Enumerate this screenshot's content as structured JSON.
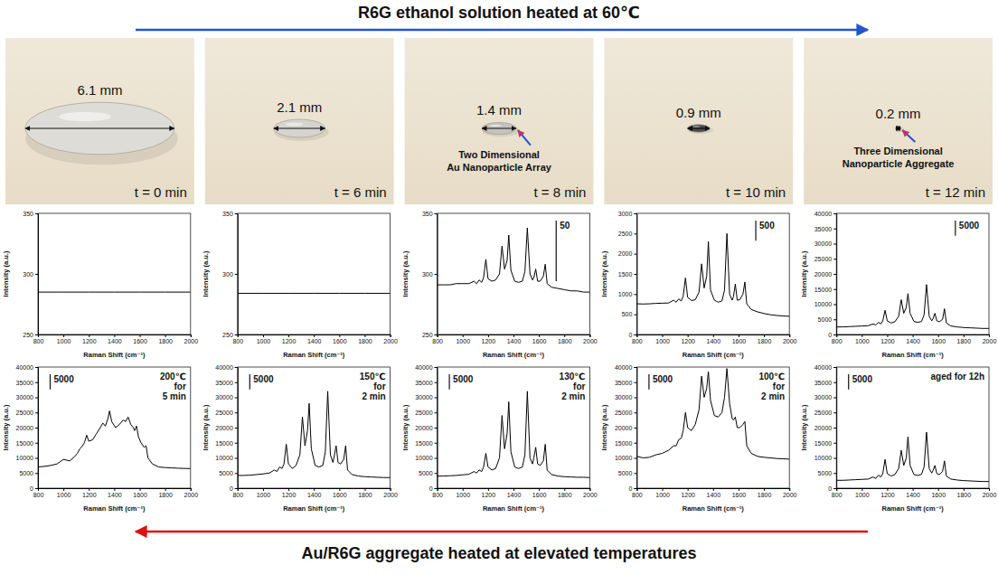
{
  "header": {
    "top": "R6G ethanol solution heated at 60℃",
    "bottom": "Au/R6G aggregate heated at elevated temperatures"
  },
  "photos": [
    {
      "diameter": 6.1,
      "diameter_label": "6.1 mm",
      "time_label": "t = 0 min",
      "color": "#dedcd6"
    },
    {
      "diameter": 2.1,
      "diameter_label": "2.1 mm",
      "time_label": "t = 6 min",
      "color": "#d6d4ce"
    },
    {
      "diameter": 1.4,
      "diameter_label": "1.4 mm",
      "time_label": "t = 8 min",
      "color": "#c4c2bc",
      "note": [
        "Two Dimensional",
        "Au Nanoparticle Array"
      ]
    },
    {
      "diameter": 0.9,
      "diameter_label": "0.9 mm",
      "time_label": "t = 10 min",
      "color": "#4a4a4a"
    },
    {
      "diameter": 0.2,
      "diameter_label": "0.2 mm",
      "time_label": "t = 12 min",
      "color": "#7a6238",
      "note": [
        "Three Dimensional",
        "Nanoparticle Aggregate"
      ]
    }
  ],
  "chart_data": [
    {
      "type": "line",
      "x": [
        800,
        1000,
        1200,
        1400,
        1600,
        1800,
        2000
      ],
      "series": [
        {
          "color": "#000000",
          "values": [
            285,
            285,
            285,
            285,
            285,
            285,
            285
          ]
        }
      ],
      "xlim": [
        800,
        2000
      ],
      "xticks": [
        800,
        1000,
        1200,
        1400,
        1600,
        1800,
        2000
      ],
      "ylim": [
        250,
        350
      ],
      "yticks": [
        250,
        300,
        350
      ],
      "x_label": "Raman Shift (cm⁻¹)",
      "y_label": "Intensity (a.u.)"
    },
    {
      "type": "line",
      "x": [
        800,
        1000,
        1200,
        1400,
        1600,
        1800,
        2000
      ],
      "series": [
        {
          "color": "#000000",
          "values": [
            284,
            284,
            284,
            284,
            284,
            284,
            284
          ]
        }
      ],
      "xlim": [
        800,
        2000
      ],
      "xticks": [
        800,
        1000,
        1200,
        1400,
        1600,
        1800,
        2000
      ],
      "ylim": [
        250,
        350
      ],
      "yticks": [
        250,
        300,
        350
      ],
      "x_label": "Raman Shift (cm⁻¹)",
      "y_label": "Intensity (a.u.)"
    },
    {
      "type": "line",
      "x": [
        800,
        850,
        900,
        950,
        1000,
        1050,
        1090,
        1110,
        1130,
        1150,
        1165,
        1183,
        1200,
        1230,
        1260,
        1290,
        1310,
        1330,
        1350,
        1363,
        1380,
        1410,
        1440,
        1470,
        1490,
        1509,
        1530,
        1550,
        1560,
        1575,
        1590,
        1610,
        1635,
        1650,
        1665,
        1700,
        1750,
        1800,
        1850,
        1900,
        1950,
        2000
      ],
      "series": [
        {
          "color": "#000000",
          "values": [
            291,
            291,
            291,
            292,
            292,
            292,
            294,
            292,
            295,
            293,
            297,
            312,
            296,
            294,
            295,
            300,
            323,
            304,
            311,
            332,
            303,
            294,
            293,
            294,
            302,
            338,
            300,
            295,
            297,
            304,
            294,
            294,
            298,
            308,
            292,
            289,
            288,
            287,
            286,
            286,
            285,
            285
          ]
        }
      ],
      "xlim": [
        800,
        2000
      ],
      "xticks": [
        800,
        1000,
        1200,
        1400,
        1600,
        1800,
        2000
      ],
      "ylim": [
        250,
        350
      ],
      "yticks": [
        250,
        300,
        350
      ],
      "x_label": "Raman Shift (cm⁻¹)",
      "y_label": "Intensity (a.u.)",
      "scale_bar": 50
    },
    {
      "type": "line",
      "x": [
        800,
        850,
        900,
        950,
        1000,
        1050,
        1090,
        1110,
        1130,
        1150,
        1165,
        1183,
        1200,
        1230,
        1260,
        1290,
        1310,
        1330,
        1350,
        1363,
        1380,
        1410,
        1440,
        1470,
        1490,
        1509,
        1530,
        1550,
        1560,
        1575,
        1590,
        1610,
        1635,
        1650,
        1665,
        1700,
        1750,
        1800,
        1850,
        1900,
        1950,
        2000
      ],
      "series": [
        {
          "color": "#000000",
          "values": [
            760,
            755,
            760,
            770,
            775,
            780,
            850,
            800,
            880,
            830,
            950,
            1400,
            920,
            840,
            860,
            1050,
            1750,
            1150,
            1450,
            2300,
            1100,
            850,
            800,
            830,
            1100,
            2500,
            1000,
            850,
            930,
            1250,
            850,
            860,
            1000,
            1300,
            760,
            620,
            560,
            520,
            490,
            470,
            460,
            450
          ]
        }
      ],
      "xlim": [
        800,
        2000
      ],
      "xticks": [
        800,
        1000,
        1200,
        1400,
        1600,
        1800,
        2000
      ],
      "ylim": [
        0,
        3000
      ],
      "yticks": [
        0,
        500,
        1000,
        1500,
        2000,
        2500,
        3000
      ],
      "x_label": "Raman Shift (cm⁻¹)",
      "y_label": "Intensity (a.u.)",
      "scale_bar": 500
    },
    {
      "type": "line",
      "x": [
        800,
        850,
        900,
        950,
        1000,
        1050,
        1090,
        1110,
        1130,
        1150,
        1165,
        1183,
        1200,
        1230,
        1260,
        1290,
        1310,
        1330,
        1350,
        1363,
        1380,
        1410,
        1440,
        1470,
        1490,
        1509,
        1530,
        1550,
        1560,
        1575,
        1590,
        1610,
        1635,
        1650,
        1665,
        1700,
        1750,
        1800,
        1850,
        1900,
        1950,
        2000
      ],
      "series": [
        {
          "color": "#000000",
          "values": [
            2500,
            2500,
            2600,
            2700,
            2800,
            2900,
            3500,
            3100,
            4000,
            3500,
            4500,
            8000,
            4500,
            3800,
            4200,
            6000,
            11500,
            7000,
            9000,
            13500,
            7000,
            4300,
            4000,
            4300,
            6500,
            16500,
            6000,
            4500,
            5200,
            7000,
            4500,
            4200,
            5000,
            8500,
            3800,
            2800,
            2500,
            2300,
            2200,
            2100,
            2000,
            2000
          ]
        }
      ],
      "xlim": [
        800,
        2000
      ],
      "xticks": [
        800,
        1000,
        1200,
        1400,
        1600,
        1800,
        2000
      ],
      "ylim": [
        0,
        40000
      ],
      "yticks": [
        0,
        5000,
        10000,
        15000,
        20000,
        25000,
        30000,
        35000,
        40000
      ],
      "x_label": "Raman Shift (cm⁻¹)",
      "y_label": "Intensity (a.u.)",
      "scale_bar": 5000
    },
    {
      "type": "line",
      "x": [
        800,
        850,
        900,
        950,
        1000,
        1050,
        1090,
        1110,
        1130,
        1150,
        1165,
        1183,
        1200,
        1230,
        1260,
        1290,
        1310,
        1330,
        1350,
        1363,
        1380,
        1410,
        1440,
        1470,
        1490,
        1509,
        1530,
        1550,
        1560,
        1575,
        1590,
        1610,
        1635,
        1650,
        1665,
        1700,
        1750,
        1800,
        1850,
        1900,
        1950,
        2000
      ],
      "series": [
        {
          "color": "#000000",
          "values": [
            7000,
            7200,
            7500,
            8000,
            9500,
            9000,
            10500,
            11500,
            13000,
            14000,
            15000,
            17500,
            15500,
            16000,
            18000,
            20000,
            21500,
            20500,
            23000,
            25500,
            22000,
            20000,
            21000,
            22500,
            22000,
            23500,
            21000,
            20000,
            19000,
            20500,
            17000,
            15000,
            13500,
            14000,
            10000,
            8000,
            7000,
            6800,
            6700,
            6600,
            6500,
            6500
          ]
        }
      ],
      "xlim": [
        800,
        2000
      ],
      "xticks": [
        800,
        1000,
        1200,
        1400,
        1600,
        1800,
        2000
      ],
      "ylim": [
        0,
        40000
      ],
      "yticks": [
        0,
        5000,
        10000,
        15000,
        20000,
        25000,
        30000,
        35000,
        40000
      ],
      "x_label": "Raman Shift (cm⁻¹)",
      "y_label": "Intensity (a.u.)",
      "scale_bar": 5000,
      "annotation": [
        "200℃",
        "for",
        "5 min"
      ]
    },
    {
      "type": "line",
      "x": [
        800,
        850,
        900,
        950,
        1000,
        1050,
        1090,
        1110,
        1130,
        1150,
        1165,
        1183,
        1200,
        1230,
        1260,
        1290,
        1310,
        1330,
        1350,
        1363,
        1380,
        1410,
        1440,
        1470,
        1490,
        1509,
        1530,
        1550,
        1560,
        1575,
        1590,
        1610,
        1635,
        1650,
        1665,
        1700,
        1750,
        1800,
        1850,
        1900,
        1950,
        2000
      ],
      "series": [
        {
          "color": "#000000",
          "values": [
            4200,
            4200,
            4300,
            4500,
            4700,
            5000,
            6000,
            5500,
            7000,
            6500,
            8000,
            14500,
            8000,
            6500,
            7500,
            11000,
            23500,
            14000,
            19000,
            28000,
            13000,
            7500,
            7000,
            7500,
            12000,
            32000,
            11000,
            8500,
            10500,
            14000,
            8500,
            8000,
            9500,
            14000,
            6000,
            4500,
            4000,
            3800,
            3700,
            3600,
            3500,
            3500
          ]
        }
      ],
      "xlim": [
        800,
        2000
      ],
      "xticks": [
        800,
        1000,
        1200,
        1400,
        1600,
        1800,
        2000
      ],
      "ylim": [
        0,
        40000
      ],
      "yticks": [
        0,
        5000,
        10000,
        15000,
        20000,
        25000,
        30000,
        35000,
        40000
      ],
      "x_label": "Raman Shift (cm⁻¹)",
      "y_label": "Intensity (a.u.)",
      "scale_bar": 5000,
      "annotation": [
        "150℃",
        "for",
        "2 min"
      ]
    },
    {
      "type": "line",
      "x": [
        800,
        850,
        900,
        950,
        1000,
        1050,
        1090,
        1110,
        1130,
        1150,
        1165,
        1183,
        1200,
        1230,
        1260,
        1290,
        1310,
        1330,
        1350,
        1363,
        1380,
        1410,
        1440,
        1470,
        1490,
        1509,
        1530,
        1550,
        1560,
        1575,
        1590,
        1610,
        1635,
        1650,
        1665,
        1700,
        1750,
        1800,
        1850,
        1900,
        1950,
        2000
      ],
      "series": [
        {
          "color": "#000000",
          "values": [
            4000,
            4000,
            4100,
            4200,
            4400,
            4600,
            5500,
            5000,
            6000,
            5500,
            7000,
            11500,
            7000,
            6000,
            6500,
            10000,
            24000,
            13000,
            18000,
            28500,
            12000,
            7000,
            6500,
            7000,
            11000,
            32000,
            10000,
            8000,
            10000,
            13500,
            8000,
            7500,
            9000,
            14500,
            6000,
            4500,
            4000,
            3800,
            3700,
            3600,
            3600,
            3500
          ]
        }
      ],
      "xlim": [
        800,
        2000
      ],
      "xticks": [
        800,
        1000,
        1200,
        1400,
        1600,
        1800,
        2000
      ],
      "ylim": [
        0,
        40000
      ],
      "yticks": [
        0,
        5000,
        10000,
        15000,
        20000,
        25000,
        30000,
        35000,
        40000
      ],
      "x_label": "Raman Shift (cm⁻¹)",
      "y_label": "Intensity (a.u.)",
      "scale_bar": 5000,
      "annotation": [
        "130℃",
        "for",
        "2 min"
      ]
    },
    {
      "type": "line",
      "x": [
        800,
        850,
        900,
        950,
        1000,
        1050,
        1090,
        1110,
        1130,
        1150,
        1165,
        1183,
        1200,
        1230,
        1260,
        1290,
        1310,
        1330,
        1350,
        1363,
        1380,
        1410,
        1440,
        1470,
        1490,
        1509,
        1530,
        1550,
        1560,
        1575,
        1590,
        1610,
        1635,
        1650,
        1665,
        1700,
        1750,
        1800,
        1850,
        1900,
        1950,
        2000
      ],
      "series": [
        {
          "color": "#000000",
          "values": [
            10500,
            10000,
            10200,
            11000,
            11500,
            12500,
            14000,
            14000,
            16000,
            16500,
            19000,
            25000,
            20000,
            19000,
            21000,
            26000,
            37000,
            30000,
            33000,
            38500,
            29000,
            24000,
            23500,
            25000,
            30000,
            39500,
            28000,
            23000,
            22500,
            23500,
            20000,
            20000,
            21000,
            22000,
            14000,
            11500,
            10500,
            10200,
            10000,
            9800,
            9700,
            9600
          ]
        }
      ],
      "xlim": [
        800,
        2000
      ],
      "xticks": [
        800,
        1000,
        1200,
        1400,
        1600,
        1800,
        2000
      ],
      "ylim": [
        0,
        40000
      ],
      "yticks": [
        0,
        5000,
        10000,
        15000,
        20000,
        25000,
        30000,
        35000,
        40000
      ],
      "x_label": "Raman Shift (cm⁻¹)",
      "y_label": "Intensity (a.u.)",
      "scale_bar": 5000,
      "annotation": [
        "100℃",
        "for",
        "2 min"
      ]
    },
    {
      "type": "line",
      "x": [
        800,
        850,
        900,
        950,
        1000,
        1050,
        1090,
        1110,
        1130,
        1150,
        1165,
        1183,
        1200,
        1230,
        1260,
        1290,
        1310,
        1330,
        1350,
        1363,
        1380,
        1410,
        1440,
        1470,
        1490,
        1509,
        1530,
        1550,
        1560,
        1575,
        1590,
        1610,
        1635,
        1650,
        1665,
        1700,
        1750,
        1800,
        1850,
        1900,
        1950,
        2000
      ],
      "series": [
        {
          "color": "#000000",
          "values": [
            2600,
            2600,
            2700,
            2800,
            2900,
            3000,
            3700,
            3200,
            4300,
            3700,
            4800,
            9500,
            4800,
            4000,
            4500,
            6500,
            12500,
            7500,
            10000,
            17000,
            7500,
            4500,
            4200,
            4600,
            7000,
            18500,
            6500,
            5000,
            5800,
            7500,
            4800,
            4500,
            5500,
            9000,
            4000,
            3000,
            2700,
            2500,
            2400,
            2300,
            2200,
            2200
          ]
        }
      ],
      "xlim": [
        800,
        2000
      ],
      "xticks": [
        800,
        1000,
        1200,
        1400,
        1600,
        1800,
        2000
      ],
      "ylim": [
        0,
        40000
      ],
      "yticks": [
        0,
        5000,
        10000,
        15000,
        20000,
        25000,
        30000,
        35000,
        40000
      ],
      "x_label": "Raman Shift (cm⁻¹)",
      "y_label": "Intensity (a.u.)",
      "scale_bar": 5000,
      "annotation": [
        "aged for 12h"
      ]
    }
  ]
}
